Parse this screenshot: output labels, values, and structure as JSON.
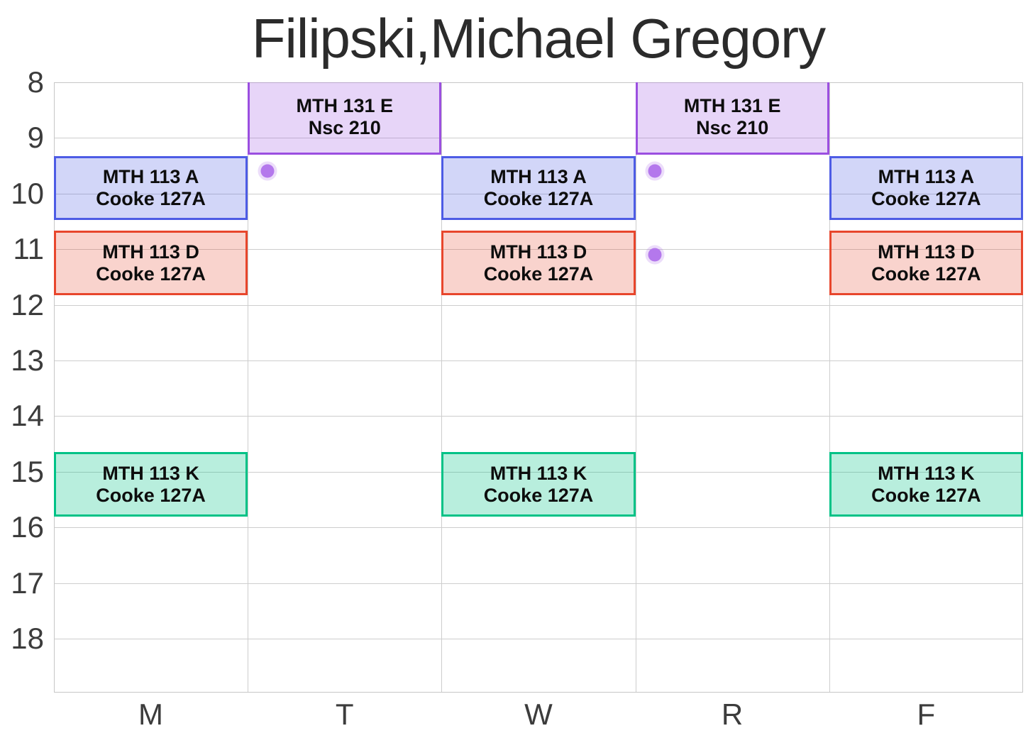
{
  "title": "Filipski,Michael Gregory",
  "colors": {
    "background": "#ffffff",
    "title_text": "#2b2b2b",
    "axis_text": "#3c3c3c",
    "gridline": "#cdcdcd",
    "block_text": "#0d0d0d"
  },
  "chart_data": {
    "type": "schedule",
    "title": "Filipski,Michael Gregory",
    "xlabel": "",
    "ylabel": "",
    "days": [
      "M",
      "T",
      "W",
      "R",
      "F"
    ],
    "y_axis": {
      "min": 8,
      "max": 18.97,
      "ticks": [
        8,
        9,
        10,
        11,
        12,
        13,
        14,
        15,
        16,
        17,
        18
      ],
      "unit": "hour of day",
      "grid": true
    },
    "legend": "none",
    "events": [
      {
        "label": "MTH 131 E",
        "room": "Nsc 210",
        "days": [
          "T",
          "R"
        ],
        "start": 8.0,
        "end": 9.3,
        "border_color": "#9b4fe0",
        "fill_color": "rgba(155,79,224,0.24)"
      },
      {
        "label": "MTH 113 A",
        "room": "Cooke 127A",
        "days": [
          "M",
          "W",
          "F"
        ],
        "start": 9.33,
        "end": 10.47,
        "border_color": "#4d5ce5",
        "fill_color": "rgba(77,92,229,0.25)"
      },
      {
        "label": "MTH 113 D",
        "room": "Cooke 127A",
        "days": [
          "M",
          "W",
          "F"
        ],
        "start": 10.67,
        "end": 11.83,
        "border_color": "#e8462c",
        "fill_color": "rgba(232,70,44,0.24)"
      },
      {
        "label": "MTH 113 K",
        "room": "Cooke 127A",
        "days": [
          "M",
          "W",
          "F"
        ],
        "start": 14.65,
        "end": 15.81,
        "border_color": "#00c286",
        "fill_color": "rgba(0,194,134,0.28)"
      }
    ],
    "markers": [
      {
        "day": "T",
        "hour": 9.6,
        "day_frac": 0.1,
        "color": "#b478ec"
      },
      {
        "day": "R",
        "hour": 9.6,
        "day_frac": 0.1,
        "color": "#b478ec"
      },
      {
        "day": "R",
        "hour": 11.1,
        "day_frac": 0.1,
        "color": "#b478ec"
      }
    ]
  }
}
